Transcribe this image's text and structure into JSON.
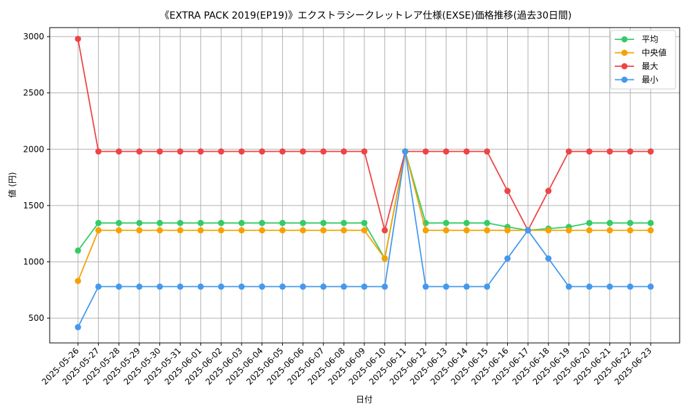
{
  "chart_data": {
    "type": "line",
    "title": "《EXTRA PACK 2019(EP19)》エクストラシークレットレア仕様(EXSE)価格推移(過去30日間)",
    "xlabel": "日付",
    "ylabel": "値 (円)",
    "ylim": [
      280,
      3080
    ],
    "yticks": [
      500,
      1000,
      1500,
      2000,
      2500,
      3000
    ],
    "grid": true,
    "legend_position": "top-right",
    "x": [
      "2025-05-26",
      "2025-05-27",
      "2025-05-28",
      "2025-05-29",
      "2025-05-30",
      "2025-05-31",
      "2025-06-01",
      "2025-06-02",
      "2025-06-03",
      "2025-06-04",
      "2025-06-05",
      "2025-06-06",
      "2025-06-07",
      "2025-06-08",
      "2025-06-09",
      "2025-06-10",
      "2025-06-11",
      "2025-06-12",
      "2025-06-13",
      "2025-06-14",
      "2025-06-15",
      "2025-06-16",
      "2025-06-17",
      "2025-06-18",
      "2025-06-19",
      "2025-06-20",
      "2025-06-21",
      "2025-06-22",
      "2025-06-23"
    ],
    "series": [
      {
        "name": "平均",
        "color": "#33cc66",
        "values": [
          1100,
          1345,
          1345,
          1345,
          1345,
          1345,
          1345,
          1345,
          1345,
          1345,
          1345,
          1345,
          1345,
          1345,
          1345,
          1030,
          1980,
          1345,
          1345,
          1345,
          1345,
          1310,
          1280,
          1295,
          1310,
          1345,
          1345,
          1345,
          1345
        ]
      },
      {
        "name": "中央値",
        "color": "#f5a200",
        "values": [
          830,
          1280,
          1280,
          1280,
          1280,
          1280,
          1280,
          1280,
          1280,
          1280,
          1280,
          1280,
          1280,
          1280,
          1280,
          1030,
          1980,
          1280,
          1280,
          1280,
          1280,
          1280,
          1280,
          1280,
          1280,
          1280,
          1280,
          1280,
          1280
        ]
      },
      {
        "name": "最大",
        "color": "#ee4444",
        "values": [
          2980,
          1980,
          1980,
          1980,
          1980,
          1980,
          1980,
          1980,
          1980,
          1980,
          1980,
          1980,
          1980,
          1980,
          1980,
          1280,
          1980,
          1980,
          1980,
          1980,
          1980,
          1630,
          1280,
          1630,
          1980,
          1980,
          1980,
          1980,
          1980
        ]
      },
      {
        "name": "最小",
        "color": "#4499ee",
        "values": [
          420,
          780,
          780,
          780,
          780,
          780,
          780,
          780,
          780,
          780,
          780,
          780,
          780,
          780,
          780,
          780,
          1980,
          780,
          780,
          780,
          780,
          1030,
          1280,
          1030,
          780,
          780,
          780,
          780,
          780
        ]
      }
    ]
  }
}
